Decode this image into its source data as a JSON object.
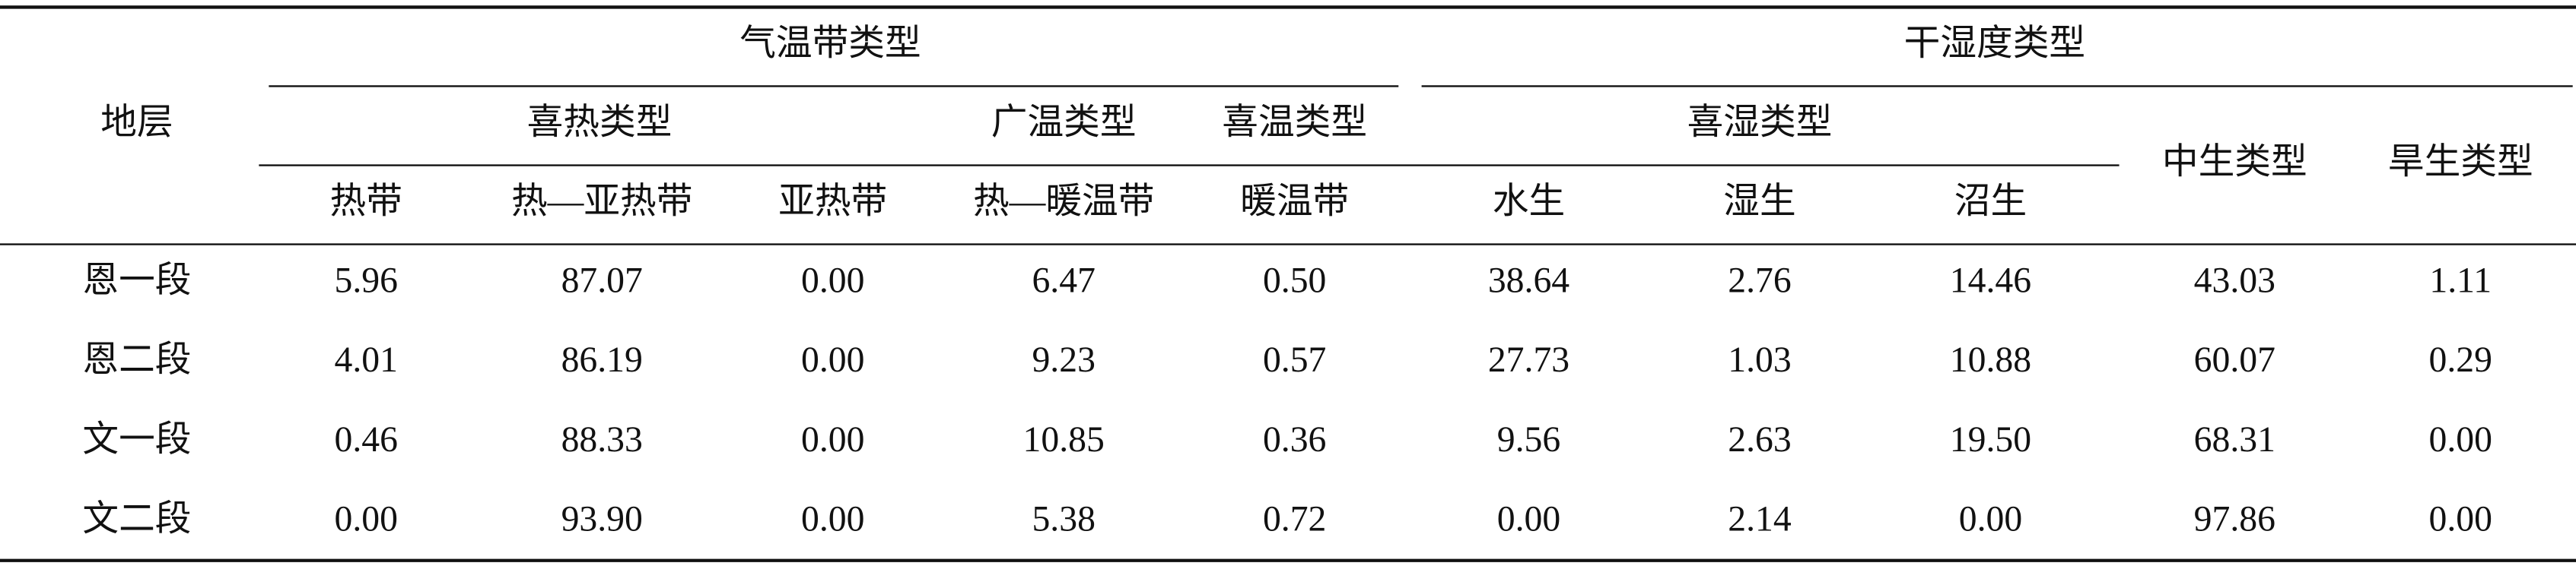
{
  "table": {
    "stub_header": "地层",
    "groups": [
      {
        "label": "气温带类型",
        "subgroups": [
          {
            "label": "喜热类型",
            "columns": [
              "热带",
              "热—亚热带",
              "亚热带"
            ]
          },
          {
            "label": "广温类型",
            "columns": [
              "热—暖温带"
            ]
          },
          {
            "label": "喜温类型",
            "columns": [
              "暖温带"
            ]
          }
        ]
      },
      {
        "label": "干湿度类型",
        "subgroups": [
          {
            "label": "喜湿类型",
            "columns": [
              "水生",
              "湿生",
              "沼生"
            ]
          },
          {
            "label": "中生类型",
            "columns": []
          },
          {
            "label": "旱生类型",
            "columns": []
          }
        ]
      }
    ],
    "rows": [
      {
        "label": "恩一段",
        "values": [
          "5.96",
          "87.07",
          "0.00",
          "6.47",
          "0.50",
          "38.64",
          "2.76",
          "14.46",
          "43.03",
          "1.11"
        ]
      },
      {
        "label": "恩二段",
        "values": [
          "4.01",
          "86.19",
          "0.00",
          "9.23",
          "0.57",
          "27.73",
          "1.03",
          "10.88",
          "60.07",
          "0.29"
        ]
      },
      {
        "label": "文一段",
        "values": [
          "0.46",
          "88.33",
          "0.00",
          "10.85",
          "0.36",
          "9.56",
          "2.63",
          "19.50",
          "68.31",
          "0.00"
        ]
      },
      {
        "label": "文二段",
        "values": [
          "0.00",
          "93.90",
          "0.00",
          "5.38",
          "0.72",
          "0.00",
          "2.14",
          "0.00",
          "97.86",
          "0.00"
        ]
      }
    ]
  }
}
